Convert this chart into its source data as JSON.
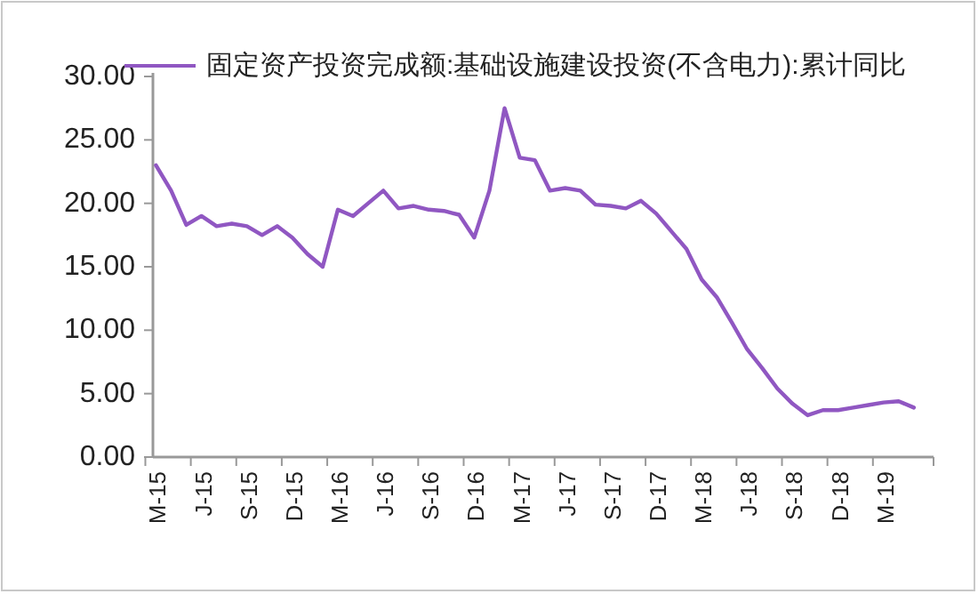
{
  "chart_data": {
    "type": "line",
    "legend": "top",
    "grid": false,
    "categories": [
      "M-15",
      null,
      null,
      "J-15",
      null,
      null,
      "S-15",
      null,
      null,
      "D-15",
      null,
      null,
      "M-16",
      null,
      null,
      "J-16",
      null,
      null,
      "S-16",
      null,
      null,
      "D-16",
      null,
      null,
      "M-17",
      null,
      null,
      "J-17",
      null,
      null,
      "S-17",
      null,
      null,
      "D-17",
      null,
      null,
      "M-18",
      null,
      null,
      "J-18",
      null,
      null,
      "S-18",
      null,
      null,
      "D-18",
      null,
      null,
      "M-19",
      null,
      null
    ],
    "ylim": [
      0,
      30
    ],
    "yticks": [
      {
        "value": 0,
        "label": "0.00"
      },
      {
        "value": 5,
        "label": "5.00"
      },
      {
        "value": 10,
        "label": "10.00"
      },
      {
        "value": 15,
        "label": "15.00"
      },
      {
        "value": 20,
        "label": "20.00"
      },
      {
        "value": 25,
        "label": "25.00"
      },
      {
        "value": 30,
        "label": "30.00"
      }
    ],
    "series": [
      {
        "name": "固定资产投资完成额:基础设施建设投资(不含电力):累计同比",
        "color": "#9057c2",
        "values": [
          23.0,
          21.0,
          18.3,
          19.0,
          18.2,
          18.4,
          18.2,
          17.5,
          18.2,
          17.3,
          16.0,
          15.0,
          19.5,
          19.0,
          20.0,
          21.0,
          19.6,
          19.8,
          19.5,
          19.4,
          19.1,
          17.3,
          21.0,
          27.5,
          23.6,
          23.4,
          21.0,
          21.2,
          21.0,
          19.9,
          19.8,
          19.6,
          20.2,
          19.2,
          17.8,
          16.4,
          14.0,
          12.6,
          10.6,
          8.5,
          7.0,
          5.4,
          4.2,
          3.3,
          3.7,
          3.7,
          3.9,
          4.1,
          4.3,
          4.4,
          3.9
        ]
      }
    ]
  }
}
